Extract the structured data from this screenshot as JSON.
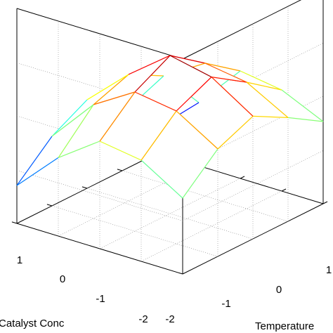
{
  "chart_data": {
    "type": "surface",
    "title": "",
    "xlabel": "Catalyst Conc",
    "ylabel": "Temperature",
    "zlabel": "",
    "x_ticks": [
      "-2",
      "-1",
      "0",
      "1"
    ],
    "y_ticks": [
      "-2",
      "-1",
      "0",
      "1"
    ],
    "xlim": [
      -2,
      2
    ],
    "ylim": [
      -2,
      2
    ],
    "grid": true,
    "colormap": "jet",
    "grid_x": [
      -2,
      -1,
      0,
      1,
      2
    ],
    "grid_y": [
      -2,
      -1,
      0,
      1,
      2
    ],
    "surface_z": [
      [
        0.2,
        0.5,
        0.85,
        0.8,
        0.65
      ],
      [
        0.45,
        0.85,
        1.05,
        1.0,
        0.82
      ],
      [
        0.7,
        1.0,
        1.25,
        1.18,
        0.97
      ],
      [
        0.55,
        0.9,
        1.1,
        1.05,
        0.85
      ],
      [
        0.3,
        0.62,
        0.85,
        0.8,
        0.6
      ]
    ]
  }
}
